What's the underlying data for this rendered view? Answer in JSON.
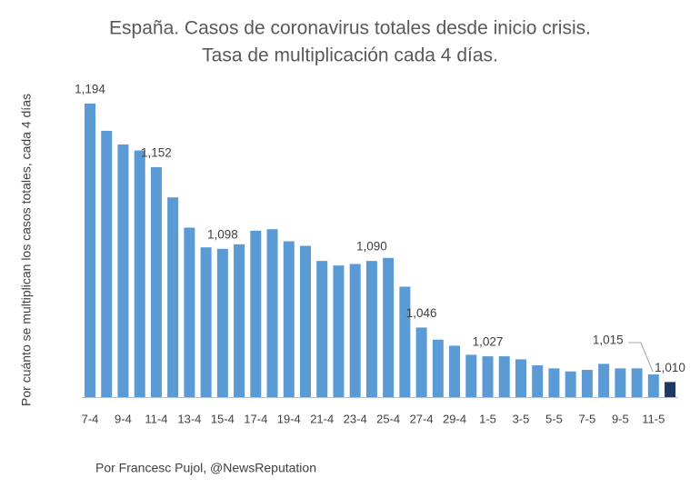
{
  "chart_data": {
    "type": "bar",
    "title": "España. Casos de coronavirus totales desde inicio crisis.",
    "subtitle": "Tasa de multiplicación cada 4 días.",
    "y_label": "Por cuánto se multiplican los casos totales, cada 4 días",
    "source": "Por Francesc Pujol, @NewsReputation",
    "categories": [
      "7-4",
      null,
      "9-4",
      null,
      "11-4",
      null,
      "13-4",
      null,
      "15-4",
      null,
      "17-4",
      null,
      "19-4",
      null,
      "21-4",
      null,
      "23-4",
      null,
      "25-4",
      null,
      "27-4",
      null,
      "29-4",
      null,
      "1-5",
      null,
      "3-5",
      null,
      "5-5",
      null,
      "7-5",
      null,
      "9-5",
      null,
      "11-5",
      null
    ],
    "values": [
      1.194,
      1.176,
      1.167,
      1.163,
      1.152,
      1.132,
      1.112,
      1.099,
      1.098,
      1.101,
      1.11,
      1.111,
      1.103,
      1.1,
      1.09,
      1.087,
      1.088,
      1.09,
      1.092,
      1.073,
      1.046,
      1.038,
      1.034,
      1.028,
      1.027,
      1.027,
      1.025,
      1.021,
      1.019,
      1.017,
      1.018,
      1.022,
      1.019,
      1.019,
      1.015,
      1.01
    ],
    "value_labels": [
      "1,194",
      null,
      null,
      null,
      "1,152",
      null,
      null,
      null,
      "1,098",
      null,
      null,
      null,
      null,
      null,
      null,
      null,
      null,
      "1,090",
      null,
      null,
      "1,046",
      null,
      null,
      null,
      "1,027",
      null,
      null,
      null,
      null,
      null,
      null,
      null,
      null,
      null,
      "1,015",
      "1,010"
    ],
    "color": "#5b9bd5",
    "highlight": {
      "index": 35,
      "color": "#203864"
    },
    "ylim": [
      1.0,
      1.2
    ]
  }
}
